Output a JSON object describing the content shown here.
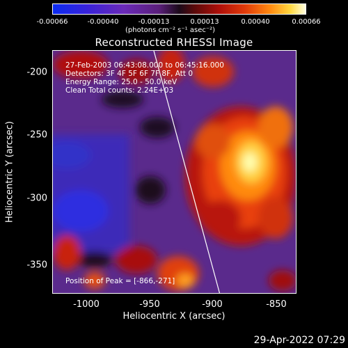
{
  "colorbar": {
    "ticks": [
      "-0.00066",
      "-0.00040",
      "-0.00013",
      "0.00013",
      "0.00040",
      "0.00066"
    ],
    "units": "(photons cm⁻² s⁻¹ asec⁻²)"
  },
  "title": "Reconstructed RHESSI Image",
  "info": {
    "time": "27-Feb-2003 06:43:08.000 to 06:45:16.000",
    "detectors": "Detectors: 3F 4F 5F 6F 7F 8F, Att 0",
    "energy": "Energy Range: 25.0 - 50.0 keV",
    "clean": "Clean     Total counts: 2.24E+03"
  },
  "peak": "Position of Peak = [-866,-271]",
  "axes": {
    "xlabel": "Heliocentric X (arcsec)",
    "ylabel": "Heliocentric Y (arcsec)",
    "xticks": [
      "-1000",
      "-950",
      "-900",
      "-850"
    ],
    "yticks": [
      "-200",
      "-250",
      "-300",
      "-350"
    ]
  },
  "footer_date": "29-Apr-2022 07:29"
}
